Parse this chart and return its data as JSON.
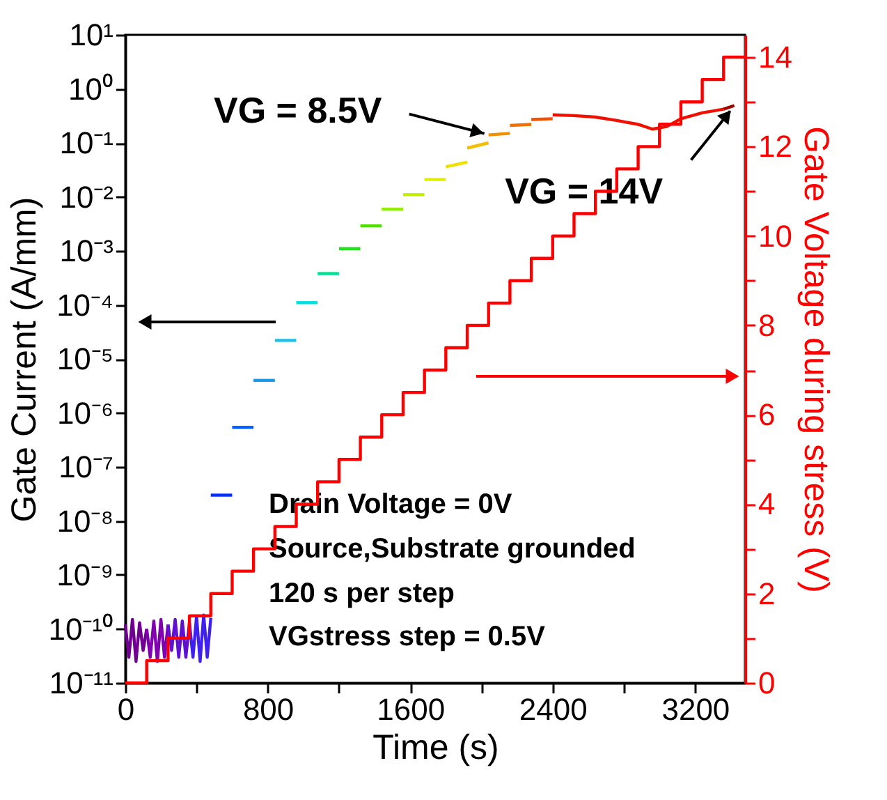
{
  "chart_data": {
    "type": "line",
    "xlabel": "Time (s)",
    "ylabel": "Gate Current (A/mm)",
    "y2label": "Gate Voltage during stress (V)",
    "log": "y",
    "grid": false,
    "legend": false,
    "marker": "none",
    "xlim": [
      0,
      3480
    ],
    "xticks": [
      0,
      {
        "value": 400,
        "label": null
      },
      800,
      {
        "value": 1200,
        "label": null
      },
      1600,
      {
        "value": 2000,
        "label": null
      },
      2400,
      {
        "value": 2800,
        "label": null
      },
      3200
    ],
    "ylim": [
      1e-11,
      10
    ],
    "yticks": [
      {
        "value": 1e-11,
        "label": "10⁻¹¹"
      },
      {
        "value": 1e-10,
        "label": "10⁻¹⁰"
      },
      {
        "value": 1e-09,
        "label": "10⁻⁹"
      },
      {
        "value": 1e-08,
        "label": "10⁻⁸"
      },
      {
        "value": 1e-07,
        "label": "10⁻⁷"
      },
      {
        "value": 1e-06,
        "label": "10⁻⁶"
      },
      {
        "value": 1e-05,
        "label": "10⁻⁵"
      },
      {
        "value": 0.0001,
        "label": "10⁻⁴"
      },
      {
        "value": 0.001,
        "label": "10⁻³"
      },
      {
        "value": 0.01,
        "label": "10⁻²"
      },
      {
        "value": 0.1,
        "label": "10⁻¹"
      },
      {
        "value": 1,
        "label": "10⁰"
      },
      {
        "value": 10,
        "label": "10¹"
      }
    ],
    "y2lim": [
      0,
      14.5
    ],
    "y2ticks": [
      0,
      {
        "value": 1,
        "label": null
      },
      2,
      {
        "value": 3,
        "label": null
      },
      4,
      {
        "value": 5,
        "label": null
      },
      6,
      {
        "value": 7,
        "label": null
      },
      8,
      {
        "value": 9,
        "label": null
      },
      10,
      {
        "value": 11,
        "label": null
      },
      12,
      {
        "value": 13,
        "label": null
      },
      14
    ],
    "series": [
      {
        "type": "line",
        "color": "#700090",
        "x": [
          0,
          20,
          40,
          60,
          80,
          100,
          120
        ],
        "values": [
          1.2e-10,
          3e-11,
          1.5e-10,
          2.5e-11,
          1.3e-10,
          4e-11,
          1e-10
        ]
      },
      {
        "type": "line",
        "color": "#8000b0",
        "x": [
          120,
          140,
          160,
          180,
          200,
          220,
          240
        ],
        "values": [
          1e-10,
          3e-11,
          1.4e-10,
          2.5e-11,
          1.5e-10,
          3e-11,
          1.2e-10
        ]
      },
      {
        "type": "line",
        "color": "#6010d0",
        "x": [
          240,
          260,
          280,
          300,
          320,
          340,
          360
        ],
        "values": [
          1.2e-10,
          4e-11,
          1.5e-10,
          3e-11,
          1.4e-10,
          3e-11,
          1.3e-10
        ]
      },
      {
        "type": "line",
        "color": "#4020f0",
        "x": [
          360,
          380,
          400,
          420,
          440,
          460,
          480
        ],
        "values": [
          1.3e-10,
          3e-11,
          1.7e-10,
          2.5e-11,
          1.8e-10,
          3e-11,
          1.6e-10
        ]
      },
      {
        "type": "line",
        "color": "#0030ff",
        "x": [
          480,
          600
        ],
        "values": [
          3e-08,
          3e-08
        ]
      },
      {
        "type": "line",
        "color": "#0060ff",
        "x": [
          600,
          720
        ],
        "values": [
          5.4e-07,
          5.4e-07
        ]
      },
      {
        "type": "line",
        "color": "#1a9ae6",
        "x": [
          720,
          840
        ],
        "values": [
          4e-06,
          4e-06
        ]
      },
      {
        "type": "line",
        "color": "#20c0e8",
        "x": [
          840,
          960
        ],
        "values": [
          2.2e-05,
          2.2e-05
        ]
      },
      {
        "type": "line",
        "color": "#00e0e0",
        "x": [
          960,
          1080
        ],
        "values": [
          0.00011,
          0.00011
        ]
      },
      {
        "type": "line",
        "color": "#00e090",
        "x": [
          1080,
          1200
        ],
        "values": [
          0.00038,
          0.00038
        ]
      },
      {
        "type": "line",
        "color": "#20e020",
        "x": [
          1200,
          1320
        ],
        "values": [
          0.0011,
          0.0011
        ]
      },
      {
        "type": "line",
        "color": "#50e000",
        "x": [
          1320,
          1440
        ],
        "values": [
          0.0029,
          0.0029
        ]
      },
      {
        "type": "line",
        "color": "#90f000",
        "x": [
          1440,
          1560
        ],
        "values": [
          0.0059,
          0.0059
        ]
      },
      {
        "type": "line",
        "color": "#c0f000",
        "x": [
          1560,
          1680
        ],
        "values": [
          0.011,
          0.011
        ]
      },
      {
        "type": "line",
        "color": "#e0f000",
        "x": [
          1680,
          1800
        ],
        "values": [
          0.021,
          0.021
        ]
      },
      {
        "type": "line",
        "color": "#f0e000",
        "x": [
          1800,
          1920
        ],
        "values": [
          0.036,
          0.044
        ]
      },
      {
        "type": "line",
        "color": "#f0c000",
        "x": [
          1920,
          2040
        ],
        "values": [
          0.08,
          0.1
        ]
      },
      {
        "type": "line",
        "color": "#f09000",
        "x": [
          2040,
          2160
        ],
        "values": [
          0.14,
          0.15
        ]
      },
      {
        "type": "line",
        "color": "#f07000",
        "x": [
          2160,
          2280
        ],
        "values": [
          0.21,
          0.22
        ]
      },
      {
        "type": "line",
        "color": "#f05000",
        "x": [
          2280,
          2400
        ],
        "values": [
          0.27,
          0.28
        ]
      },
      {
        "type": "line",
        "color": "#f01000",
        "x": [
          2400,
          2520,
          2640,
          2760,
          2880,
          2960,
          3040,
          3120,
          3240,
          3360
        ],
        "values": [
          0.33,
          0.32,
          0.3,
          0.26,
          0.22,
          0.18,
          0.2,
          0.28,
          0.36,
          0.42
        ]
      },
      {
        "type": "line",
        "color": "#a00000",
        "x": [
          3360,
          3420
        ],
        "values": [
          0.42,
          0.49
        ]
      },
      {
        "type": "step",
        "axis": "y2",
        "color": "#ff0000",
        "x": [
          0,
          120,
          240,
          360,
          480,
          600,
          720,
          840,
          960,
          1080,
          1200,
          1320,
          1440,
          1560,
          1680,
          1800,
          1920,
          2040,
          2160,
          2280,
          2400,
          2520,
          2640,
          2760,
          2880,
          3000,
          3120,
          3240,
          3360,
          3480
        ],
        "values": [
          0,
          0.5,
          1,
          1.5,
          2,
          2.5,
          3,
          3.5,
          4,
          4.5,
          5,
          5.5,
          6,
          6.5,
          7,
          7.5,
          8,
          8.5,
          9,
          9.5,
          10,
          10.5,
          11,
          11.5,
          12,
          12.5,
          13,
          13.5,
          14,
          14
        ]
      }
    ],
    "annotations": [
      {
        "text": "VG = 8.5V",
        "x": 2040,
        "y": 0.14
      },
      {
        "text": "VG = 14V",
        "x": 3420,
        "y": 0.49
      },
      "Drain Voltage = 0V",
      "Source,Substrate grounded",
      "120 s per step",
      " VGstress step = 0.5V"
    ]
  }
}
